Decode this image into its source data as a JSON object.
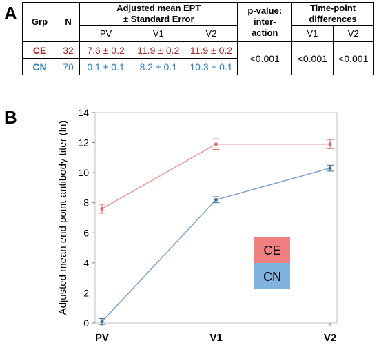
{
  "panel_a_label": "A",
  "panel_b_label": "B",
  "table": {
    "header_grp": "Grp",
    "header_n": "N",
    "header_ept_line1": "Adjusted mean EPT",
    "header_ept_line2": "± Standard Error",
    "header_pvalue_line1": "p-value:",
    "header_pvalue_line2": "inter-",
    "header_pvalue_line3": "action",
    "header_timepoint_line1": "Time-point",
    "header_timepoint_line2": "differences",
    "sub_pv": "PV",
    "sub_v1": "V1",
    "sub_v2": "V2",
    "sub_td_v1": "V1",
    "sub_td_v2": "V2",
    "rows": [
      {
        "grp": "CE",
        "n": "32",
        "pv": "7.6 ± 0.2",
        "v1": "11.9 ± 0.2",
        "v2": "11.9 ± 0.2"
      },
      {
        "grp": "CN",
        "n": "70",
        "pv": "0.1 ± 0.1",
        "v1": "8.2 ± 0.1",
        "v2": "10.3 ± 0.1"
      }
    ],
    "p_interaction": "<0.001",
    "td_v1": "<0.001",
    "td_v2": "<0.001"
  },
  "colors": {
    "ce_text": "#a52a2a",
    "cn_text": "#2f7fb8",
    "ce_line": "#e79a9a",
    "cn_line": "#7fa3c6",
    "ce_marker": "#d46a6a",
    "cn_marker": "#3f6f9f",
    "legend_ce": "#f08080",
    "legend_cn": "#7fb2dc"
  },
  "chart_data": {
    "type": "line",
    "categories": [
      "PV",
      "V1",
      "V2"
    ],
    "ylabel": "Adjusted mean end point antibody titer (ln)",
    "ylim": [
      0,
      14
    ],
    "yticks": [
      0,
      2,
      4,
      6,
      8,
      10,
      12,
      14
    ],
    "grid": false,
    "legend": {
      "position": "center-right",
      "entries": [
        "CE",
        "CN"
      ]
    },
    "series": [
      {
        "name": "CE",
        "values": [
          7.6,
          11.9,
          11.9
        ],
        "errors": [
          0.3,
          0.35,
          0.3
        ]
      },
      {
        "name": "CN",
        "values": [
          0.1,
          8.2,
          10.3
        ],
        "errors": [
          0.2,
          0.2,
          0.2
        ]
      }
    ]
  }
}
